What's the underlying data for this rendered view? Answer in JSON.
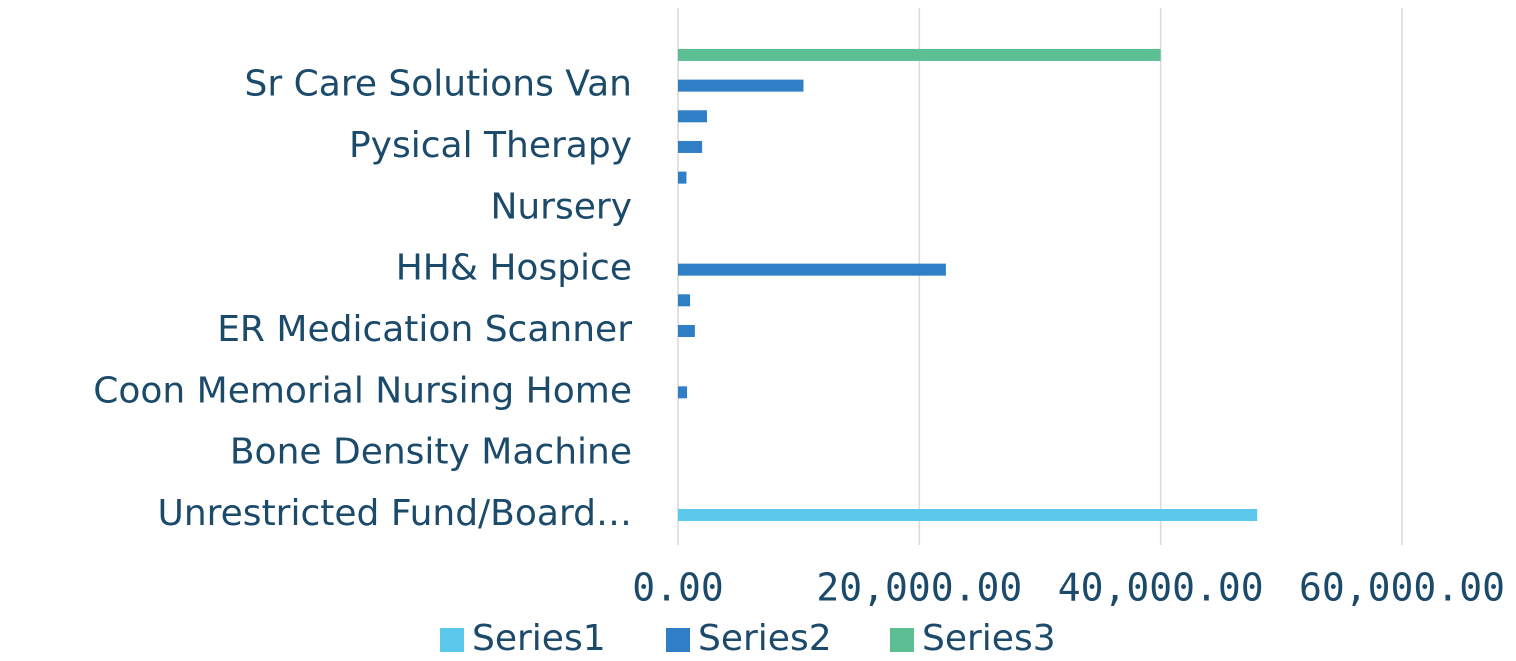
{
  "chart_data": {
    "type": "bar",
    "orientation": "horizontal",
    "categories": [
      "Unrestricted Fund/Board…",
      null,
      "Bone Density Machine",
      null,
      "Coon Memorial Nursing Home",
      null,
      "ER Medication Scanner",
      null,
      "HH& Hospice",
      null,
      "Nursery",
      null,
      "Pysical Therapy",
      null,
      "Sr Care Solutions Van",
      null
    ],
    "series": [
      {
        "name": "Series1",
        "color": "#5bc8ec",
        "values": [
          48000,
          null,
          null,
          null,
          null,
          null,
          null,
          null,
          null,
          null,
          null,
          null,
          null,
          null,
          null,
          null
        ]
      },
      {
        "name": "Series2",
        "color": "#2f7ec6",
        "values": [
          null,
          null,
          null,
          null,
          750,
          null,
          1400,
          1000,
          22200,
          null,
          null,
          700,
          2000,
          2400,
          10400,
          null
        ]
      },
      {
        "name": "Series3",
        "color": "#5cbf94",
        "values": [
          null,
          null,
          null,
          null,
          null,
          null,
          null,
          null,
          null,
          null,
          null,
          null,
          null,
          null,
          null,
          40000
        ]
      }
    ],
    "xlim": [
      0,
      60000
    ],
    "xticks": [
      {
        "value": 0,
        "label": "0.00"
      },
      {
        "value": 20000,
        "label": "20,000.00"
      },
      {
        "value": 40000,
        "label": "40,000.00"
      },
      {
        "value": 60000,
        "label": "60,000.00"
      }
    ],
    "grid": true,
    "legend": "bottom"
  }
}
